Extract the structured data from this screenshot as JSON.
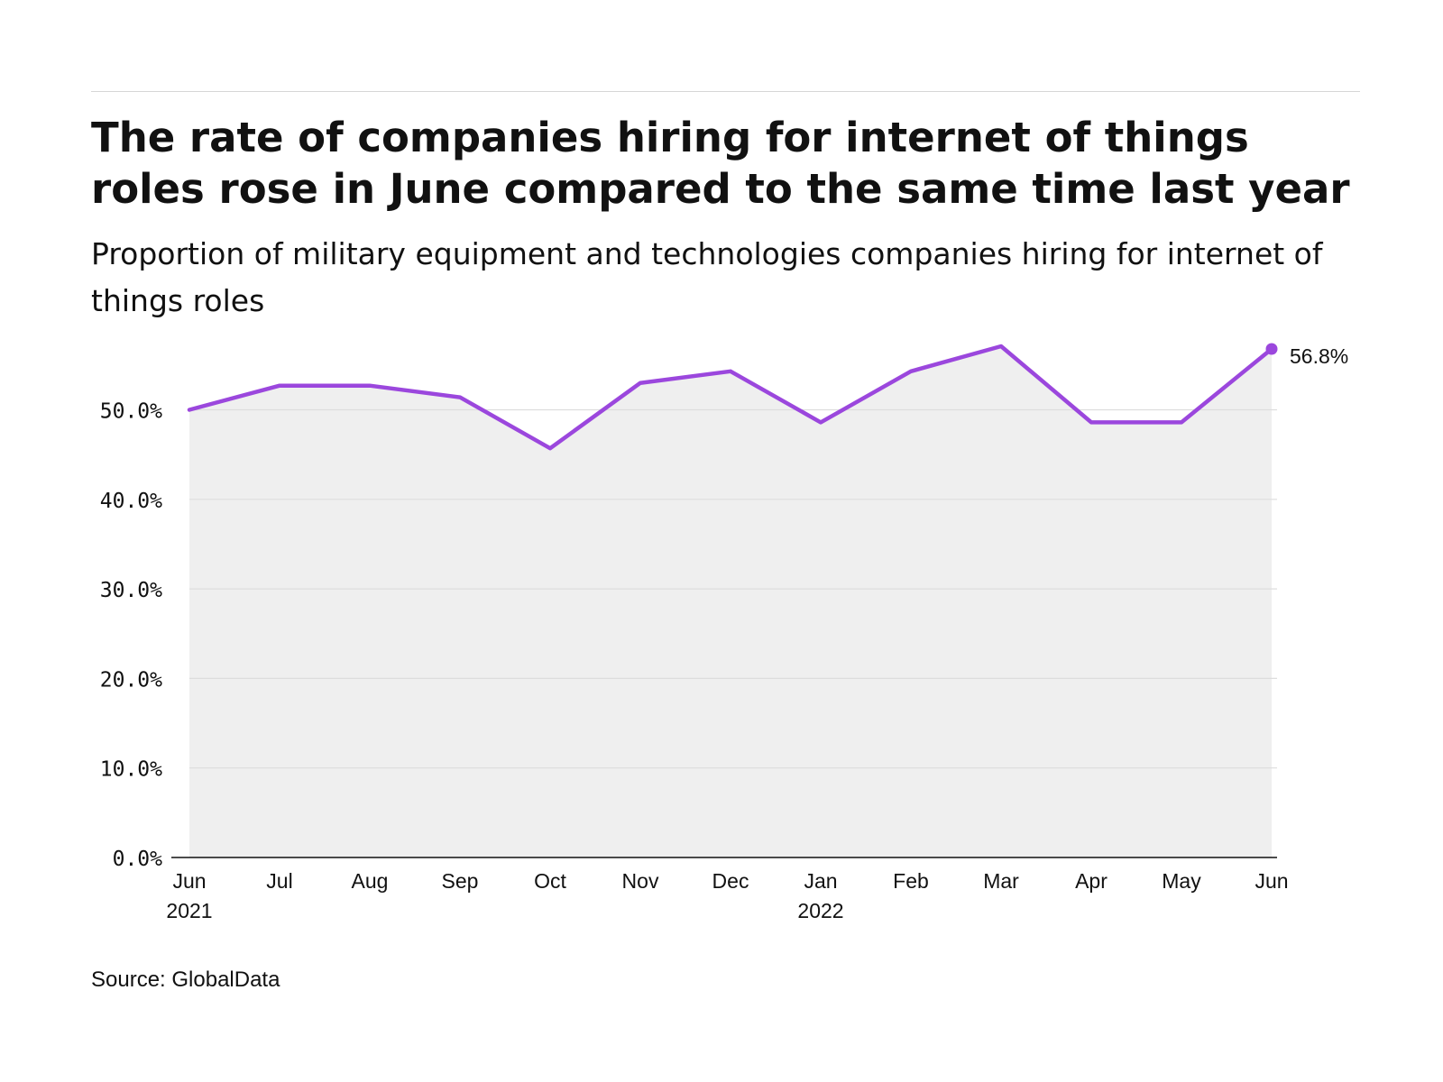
{
  "title": "The rate of companies hiring for internet of things roles rose in June compared to the same time last year",
  "subtitle": "Proportion of military equipment and technologies companies hiring for internet of things roles",
  "source": "Source: GlobalData",
  "colors": {
    "line": "#9b47dd",
    "area": "#efefef",
    "grid": "#dddddd",
    "axis": "#111111",
    "rule": "#d6d6d6"
  },
  "chart_data": {
    "type": "area",
    "x": [
      "2021-06",
      "2021-07",
      "2021-08",
      "2021-09",
      "2021-10",
      "2021-11",
      "2021-12",
      "2022-01",
      "2022-02",
      "2022-03",
      "2022-04",
      "2022-05",
      "2022-06"
    ],
    "x_tick_labels": [
      "Jun",
      "Jul",
      "Aug",
      "Sep",
      "Oct",
      "Nov",
      "Dec",
      "Jan",
      "Feb",
      "Mar",
      "Apr",
      "May",
      "Jun"
    ],
    "x_year_labels": [
      "2021",
      "",
      "",
      "",
      "",
      "",
      "",
      "2022",
      "",
      "",
      "",
      "",
      ""
    ],
    "series": [
      {
        "values": [
          50.0,
          52.7,
          52.7,
          51.4,
          45.7,
          53.0,
          54.3,
          48.6,
          54.3,
          57.1,
          48.6,
          48.6,
          56.8
        ]
      }
    ],
    "ylim": [
      0,
      57.1
    ],
    "y_ticks": [
      0,
      10,
      20,
      30,
      40,
      50
    ],
    "y_tick_labels": [
      "0.0%",
      "10.0%",
      "20.0%",
      "30.0%",
      "40.0%",
      "50.0%"
    ],
    "end_label": "56.8%",
    "grid": true,
    "legend": "none"
  }
}
